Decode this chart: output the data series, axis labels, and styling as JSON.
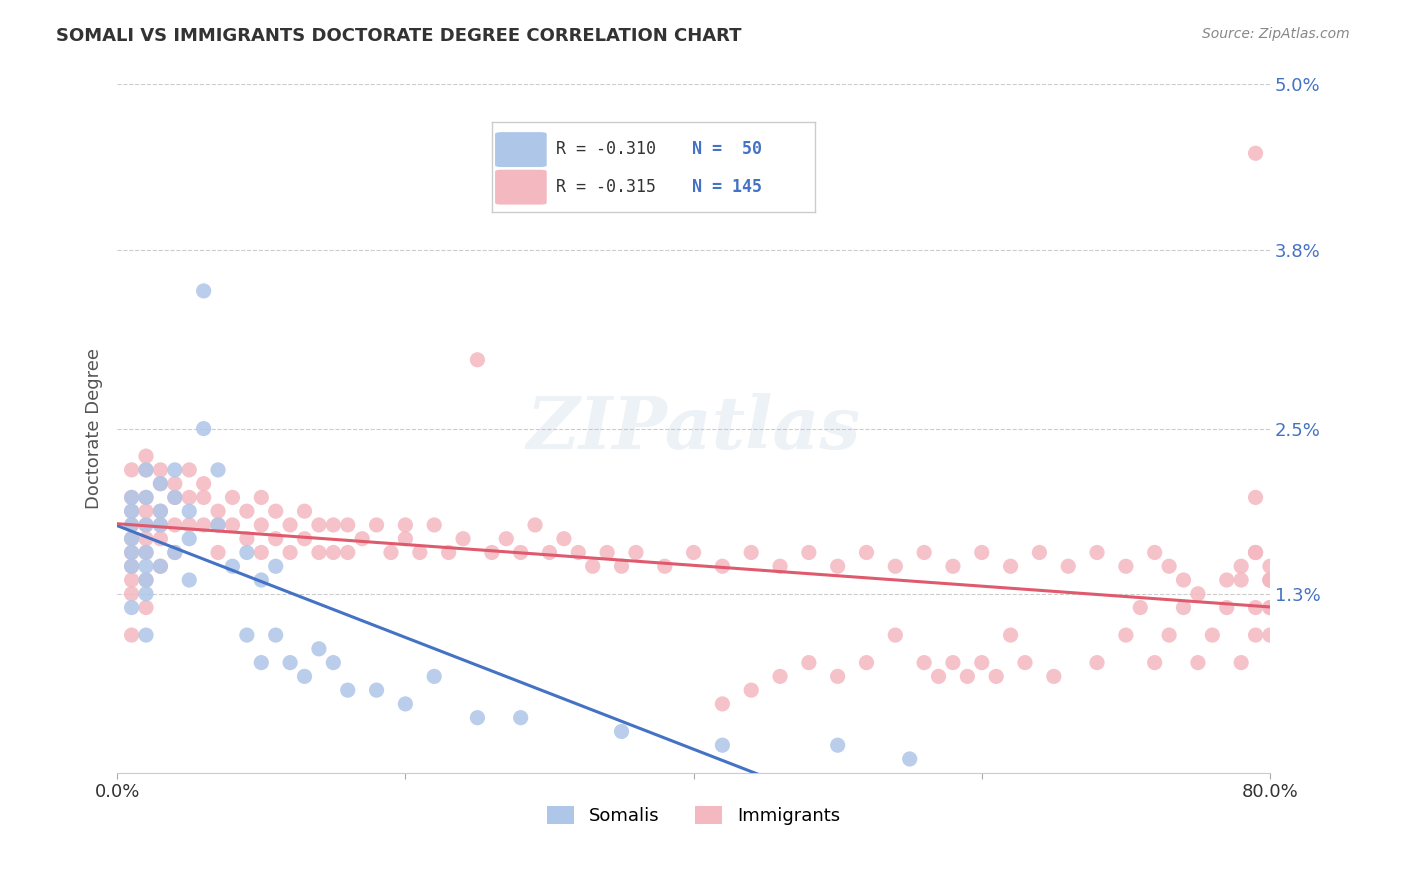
{
  "title": "SOMALI VS IMMIGRANTS DOCTORATE DEGREE CORRELATION CHART",
  "source": "Source: ZipAtlas.com",
  "ylabel": "Doctorate Degree",
  "xlabel": "",
  "xlim": [
    0.0,
    0.8
  ],
  "ylim": [
    0.0,
    0.05
  ],
  "yticks": [
    0.0,
    0.013,
    0.025,
    0.038,
    0.05
  ],
  "ytick_labels": [
    "",
    "1.3%",
    "2.5%",
    "3.8%",
    "5.0%"
  ],
  "xticks": [
    0.0,
    0.2,
    0.4,
    0.6,
    0.8
  ],
  "xtick_labels": [
    "0.0%",
    "",
    "",
    "",
    "80.0%"
  ],
  "background_color": "#ffffff",
  "grid_color": "#cccccc",
  "somali_color": "#aec6e8",
  "immigrants_color": "#f4b8c1",
  "somali_line_color": "#4472c4",
  "immigrants_line_color": "#e05a6e",
  "legend_R_somali": "R = -0.310",
  "legend_N_somali": "N =  50",
  "legend_R_immigrants": "R = -0.315",
  "legend_N_immigrants": "N = 145",
  "watermark": "ZIPatlas",
  "somali_x": [
    0.01,
    0.01,
    0.01,
    0.01,
    0.01,
    0.01,
    0.01,
    0.02,
    0.02,
    0.02,
    0.02,
    0.02,
    0.02,
    0.02,
    0.02,
    0.03,
    0.03,
    0.03,
    0.03,
    0.04,
    0.04,
    0.04,
    0.05,
    0.05,
    0.05,
    0.06,
    0.06,
    0.07,
    0.07,
    0.08,
    0.09,
    0.09,
    0.1,
    0.1,
    0.11,
    0.11,
    0.12,
    0.13,
    0.14,
    0.15,
    0.16,
    0.18,
    0.2,
    0.22,
    0.25,
    0.28,
    0.35,
    0.42,
    0.5,
    0.55
  ],
  "somali_y": [
    0.02,
    0.019,
    0.018,
    0.017,
    0.016,
    0.015,
    0.012,
    0.022,
    0.02,
    0.018,
    0.016,
    0.015,
    0.014,
    0.013,
    0.01,
    0.021,
    0.019,
    0.018,
    0.015,
    0.022,
    0.02,
    0.016,
    0.019,
    0.017,
    0.014,
    0.035,
    0.025,
    0.022,
    0.018,
    0.015,
    0.016,
    0.01,
    0.014,
    0.008,
    0.015,
    0.01,
    0.008,
    0.007,
    0.009,
    0.008,
    0.006,
    0.006,
    0.005,
    0.007,
    0.004,
    0.004,
    0.003,
    0.002,
    0.002,
    0.001
  ],
  "immigrants_x": [
    0.01,
    0.01,
    0.01,
    0.01,
    0.01,
    0.01,
    0.01,
    0.01,
    0.01,
    0.01,
    0.02,
    0.02,
    0.02,
    0.02,
    0.02,
    0.02,
    0.02,
    0.02,
    0.02,
    0.03,
    0.03,
    0.03,
    0.03,
    0.03,
    0.03,
    0.04,
    0.04,
    0.04,
    0.04,
    0.05,
    0.05,
    0.05,
    0.06,
    0.06,
    0.06,
    0.07,
    0.07,
    0.07,
    0.08,
    0.08,
    0.09,
    0.09,
    0.1,
    0.1,
    0.1,
    0.11,
    0.11,
    0.12,
    0.12,
    0.13,
    0.13,
    0.14,
    0.14,
    0.15,
    0.15,
    0.16,
    0.16,
    0.17,
    0.18,
    0.19,
    0.2,
    0.2,
    0.21,
    0.22,
    0.23,
    0.24,
    0.25,
    0.26,
    0.27,
    0.28,
    0.29,
    0.3,
    0.31,
    0.32,
    0.33,
    0.34,
    0.35,
    0.36,
    0.38,
    0.4,
    0.42,
    0.44,
    0.46,
    0.48,
    0.5,
    0.52,
    0.54,
    0.56,
    0.58,
    0.6,
    0.62,
    0.64,
    0.66,
    0.68,
    0.7,
    0.72,
    0.73,
    0.74,
    0.75,
    0.77,
    0.78,
    0.79,
    0.79,
    0.8,
    0.79,
    0.79,
    0.8,
    0.8,
    0.8,
    0.8,
    0.8,
    0.8,
    0.79,
    0.79,
    0.78,
    0.78,
    0.77,
    0.76,
    0.75,
    0.74,
    0.73,
    0.72,
    0.71,
    0.7,
    0.68,
    0.65,
    0.63,
    0.62,
    0.61,
    0.6,
    0.59,
    0.58,
    0.57,
    0.56,
    0.54,
    0.52,
    0.5,
    0.48,
    0.46,
    0.44,
    0.42
  ],
  "immigrants_y": [
    0.022,
    0.02,
    0.019,
    0.018,
    0.017,
    0.016,
    0.015,
    0.014,
    0.013,
    0.01,
    0.023,
    0.022,
    0.02,
    0.019,
    0.018,
    0.017,
    0.016,
    0.014,
    0.012,
    0.022,
    0.021,
    0.019,
    0.018,
    0.017,
    0.015,
    0.021,
    0.02,
    0.018,
    0.016,
    0.022,
    0.02,
    0.018,
    0.021,
    0.02,
    0.018,
    0.019,
    0.018,
    0.016,
    0.02,
    0.018,
    0.019,
    0.017,
    0.018,
    0.02,
    0.016,
    0.019,
    0.017,
    0.018,
    0.016,
    0.019,
    0.017,
    0.018,
    0.016,
    0.018,
    0.016,
    0.018,
    0.016,
    0.017,
    0.018,
    0.016,
    0.018,
    0.017,
    0.016,
    0.018,
    0.016,
    0.017,
    0.03,
    0.016,
    0.017,
    0.016,
    0.018,
    0.016,
    0.017,
    0.016,
    0.015,
    0.016,
    0.015,
    0.016,
    0.015,
    0.016,
    0.015,
    0.016,
    0.015,
    0.016,
    0.015,
    0.016,
    0.015,
    0.016,
    0.015,
    0.016,
    0.015,
    0.016,
    0.015,
    0.016,
    0.015,
    0.016,
    0.015,
    0.014,
    0.013,
    0.014,
    0.015,
    0.016,
    0.045,
    0.015,
    0.016,
    0.02,
    0.014,
    0.012,
    0.014,
    0.012,
    0.01,
    0.014,
    0.012,
    0.01,
    0.008,
    0.014,
    0.012,
    0.01,
    0.008,
    0.012,
    0.01,
    0.008,
    0.012,
    0.01,
    0.008,
    0.007,
    0.008,
    0.01,
    0.007,
    0.008,
    0.007,
    0.008,
    0.007,
    0.008,
    0.01,
    0.008,
    0.007,
    0.008,
    0.007,
    0.006,
    0.005
  ]
}
